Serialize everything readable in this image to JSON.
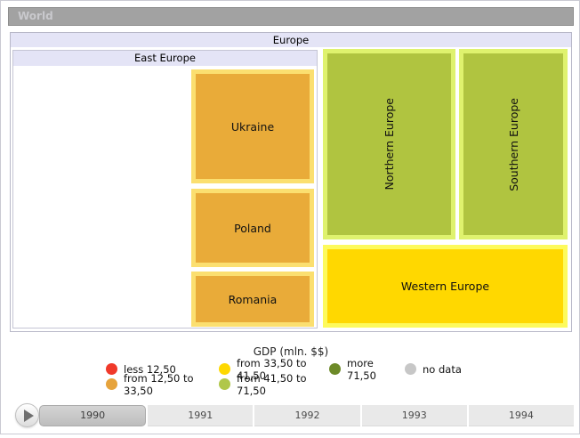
{
  "breadcrumb": {
    "label": "World"
  },
  "treemap": {
    "root": {
      "label": "Europe"
    },
    "east_europe": {
      "label": "East Europe",
      "children": [
        {
          "label": "Ukraine",
          "fill": "#e9ab39",
          "border": "#fbdf70",
          "category": "from 12,50 to 33,50"
        },
        {
          "label": "Poland",
          "fill": "#e9ab39",
          "border": "#fbdf70",
          "category": "from 12,50 to 33,50"
        },
        {
          "label": "Romania",
          "fill": "#e9ab39",
          "border": "#fbdf70",
          "category": "from 12,50 to 33,50"
        }
      ]
    },
    "regions": [
      {
        "label": "Northern Europe",
        "fill": "#b0c440",
        "border": "#dff26e",
        "category": "from 41,50 to 71,50"
      },
      {
        "label": "Southern Europe",
        "fill": "#b0c440",
        "border": "#dff26e",
        "category": "from 41,50 to 71,50"
      },
      {
        "label": "Western Europe",
        "fill": "#ffd800",
        "border": "#fdfa5c",
        "category": "from 33,50 to 41,50"
      }
    ],
    "header_bg": "#e4e4f6"
  },
  "legend": {
    "title": "GDP (mln. $$)",
    "items": [
      {
        "label": "less 12,50",
        "color": "#f0392a"
      },
      {
        "label": "from 12,50 to 33,50",
        "color": "#e6a33c"
      },
      {
        "label": "from 33,50 to 41,50",
        "color": "#fed800"
      },
      {
        "label": "from 41,50 to 71,50",
        "color": "#b0c74a"
      },
      {
        "label": "more 71,50",
        "color": "#6d8a28"
      },
      {
        "label": "no data",
        "color": "#c7c7c7"
      }
    ]
  },
  "timeline": {
    "years": [
      "1990",
      "1991",
      "1992",
      "1993",
      "1994"
    ],
    "selected_year": "1990"
  },
  "chart_data": {
    "type": "treemap",
    "title": "GDP (mln. $$)",
    "legend_position": "bottom-center",
    "legend_bins": [
      {
        "label": "less 12,50",
        "color": "#f0392a"
      },
      {
        "label": "from 12,50 to 33,50",
        "color": "#e6a33c"
      },
      {
        "label": "from 33,50 to 41,50",
        "color": "#fed800"
      },
      {
        "label": "from 41,50 to 71,50",
        "color": "#b0c74a"
      },
      {
        "label": "more 71,50",
        "color": "#6d8a28"
      },
      {
        "label": "no data",
        "color": "#c7c7c7"
      }
    ],
    "hierarchy": {
      "name": "World",
      "children": [
        {
          "name": "Europe",
          "children": [
            {
              "name": "East Europe",
              "children": [
                {
                  "name": "Ukraine",
                  "bin": "from 12,50 to 33,50"
                },
                {
                  "name": "Poland",
                  "bin": "from 12,50 to 33,50"
                },
                {
                  "name": "Romania",
                  "bin": "from 12,50 to 33,50"
                }
              ]
            },
            {
              "name": "Northern Europe",
              "bin": "from 41,50 to 71,50"
            },
            {
              "name": "Southern Europe",
              "bin": "from 41,50 to 71,50"
            },
            {
              "name": "Western Europe",
              "bin": "from 33,50 to 41,50"
            }
          ]
        }
      ]
    },
    "timeline_years": [
      "1990",
      "1991",
      "1992",
      "1993",
      "1994"
    ],
    "selected_year": "1990"
  }
}
